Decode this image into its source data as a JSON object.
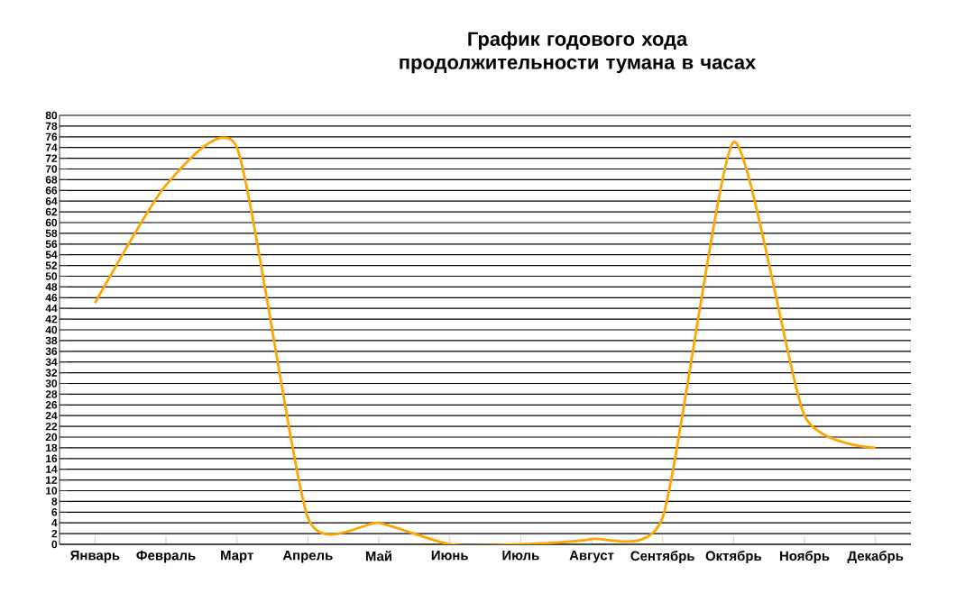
{
  "chart_data": {
    "type": "line",
    "title": "График годового хода продолжительности тумана в часах",
    "categories": [
      "Январь",
      "Февраль",
      "Март",
      "Апрель",
      "Май",
      "Июнь",
      "Июль",
      "Август",
      "Сентябрь",
      "Октябрь",
      "Ноябрь",
      "Декабрь"
    ],
    "series": [
      {
        "color": "#ffa500",
        "values": [
          45,
          67,
          74,
          5,
          4,
          0,
          0,
          1,
          5,
          75,
          24,
          18
        ]
      }
    ],
    "ylim": [
      0,
      80
    ],
    "yticks": [
      0,
      2,
      4,
      6,
      8,
      10,
      12,
      14,
      16,
      18,
      20,
      22,
      24,
      26,
      28,
      30,
      32,
      34,
      36,
      38,
      40,
      42,
      44,
      46,
      48,
      50,
      52,
      54,
      56,
      58,
      60,
      62,
      64,
      66,
      68,
      70,
      72,
      74,
      76,
      78,
      80
    ],
    "grid": "y",
    "marker": "none",
    "line_style": "solid"
  }
}
